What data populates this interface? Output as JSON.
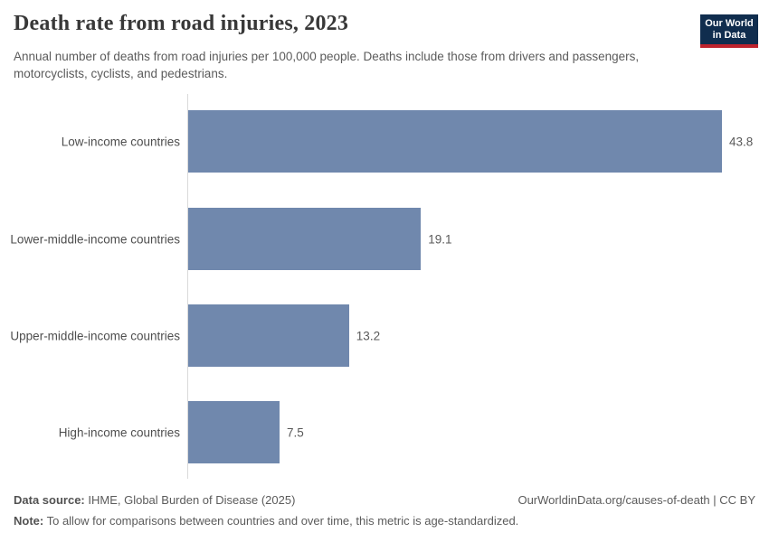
{
  "header": {
    "title": "Death rate from road injuries, 2023",
    "subtitle": "Annual number of deaths from road injuries per 100,000 people. Deaths include those from drivers and passengers, motorcyclists, cyclists, and pedestrians.",
    "logo": {
      "line1": "Our World",
      "line2": "in Data"
    }
  },
  "chart_data": {
    "type": "bar",
    "orientation": "horizontal",
    "title": "Death rate from road injuries, 2023",
    "unit": "deaths from road injuries per 100,000 people",
    "categories": [
      "Low-income countries",
      "Lower-middle-income countries",
      "Upper-middle-income countries",
      "High-income countries"
    ],
    "values": [
      43.8,
      19.1,
      13.2,
      7.5
    ],
    "xlim": [
      0,
      43.8
    ],
    "grid": "off",
    "value_labels": [
      "43.8",
      "19.1",
      "13.2",
      "7.5"
    ]
  },
  "colors": {
    "bar": "#7088ad",
    "logo_background": "#102d4e",
    "logo_accent_red": "#be232d",
    "axis_line": "#dadada",
    "title_text": "#383838",
    "body_text": "#5b5b5b"
  },
  "footer": {
    "source_label": "Data source:",
    "source_text": " IHME, Global Burden of Disease (2025)",
    "link_text": "OurWorldinData.org/causes-of-death | CC BY",
    "note_label": "Note:",
    "note_text": " To allow for comparisons between countries and over time, this metric is age-standardized."
  }
}
